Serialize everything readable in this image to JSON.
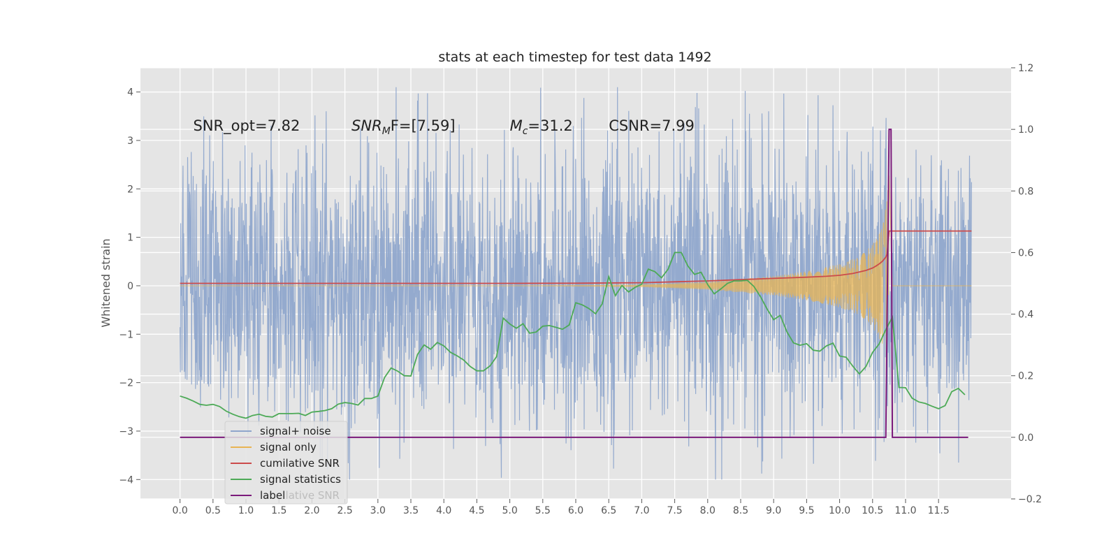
{
  "chart_data": {
    "type": "line",
    "title": "stats at each timestep for test data 1492",
    "xlabel": "",
    "ylabel": "Whitened strain",
    "y2label": "",
    "xlim": [
      -0.6,
      12.6
    ],
    "ylim": [
      -4.4,
      4.5
    ],
    "y2lim": [
      -0.2,
      1.2
    ],
    "x_ticks": [
      "0.0",
      "0.5",
      "1.0",
      "1.5",
      "2.0",
      "2.5",
      "3.0",
      "3.5",
      "4.0",
      "4.5",
      "5.0",
      "5.5",
      "6.0",
      "6.5",
      "7.0",
      "7.5",
      "8.0",
      "8.5",
      "9.0",
      "9.5",
      "10.0",
      "10.5",
      "11.0",
      "11.5"
    ],
    "y_ticks": [
      "4",
      "3",
      "2",
      "1",
      "0",
      "−1",
      "−2",
      "−3",
      "−4"
    ],
    "y2_ticks": [
      "1.2",
      "1.0",
      "0.8",
      "0.6",
      "0.4",
      "0.2",
      "0.0",
      "−0.2"
    ],
    "grid": true,
    "legend_position": "lower-left",
    "annotations": [
      {
        "text": "SNR_opt=7.82",
        "x": 0.2,
        "y": 3.3
      },
      {
        "main": "SNR",
        "sub": "M",
        "rest": "F=[7.59]",
        "x": 2.6,
        "y": 3.3
      },
      {
        "main": "M",
        "sub": "c",
        "rest": "=31.2",
        "x": 5.0,
        "y": 3.3
      },
      {
        "text": "CSNR=7.99",
        "x": 6.5,
        "y": 3.3
      }
    ],
    "series": [
      {
        "name": "signal+ noise",
        "color": "#8fa6cc",
        "axis": "left",
        "kind": "noise",
        "x_range": [
          0,
          12.0
        ],
        "typical_amplitude": 1.9,
        "max": 4.1,
        "min": -4.0
      },
      {
        "name": "signal only",
        "color": "#e8b453",
        "axis": "left",
        "kind": "chirp",
        "x_range": [
          0,
          12.0
        ],
        "merger_time": 10.75,
        "envelope": [
          [
            5.0,
            0.0
          ],
          [
            7.0,
            0.02
          ],
          [
            8.0,
            0.08
          ],
          [
            9.0,
            0.2
          ],
          [
            9.5,
            0.3
          ],
          [
            10.0,
            0.45
          ],
          [
            10.3,
            0.6
          ],
          [
            10.5,
            0.85
          ],
          [
            10.65,
            1.2
          ],
          [
            10.72,
            1.8
          ],
          [
            10.75,
            2.4
          ],
          [
            10.8,
            0.0
          ]
        ]
      },
      {
        "name": "cumilative SNR",
        "color": "#cc4b4b",
        "axis": "right",
        "x": [
          0,
          5,
          6,
          7,
          7.5,
          8,
          8.5,
          9,
          9.5,
          9.8,
          10,
          10.2,
          10.4,
          10.5,
          10.55,
          10.6,
          10.65,
          10.7,
          10.72,
          10.75,
          12.0
        ],
        "y": [
          0.5,
          0.5,
          0.5005,
          0.502,
          0.505,
          0.508,
          0.512,
          0.516,
          0.52,
          0.523,
          0.526,
          0.532,
          0.542,
          0.55,
          0.556,
          0.563,
          0.572,
          0.585,
          0.595,
          0.67,
          0.67
        ]
      },
      {
        "name": "signal statistics",
        "color": "#4daa57",
        "axis": "right",
        "x": [
          0,
          0.1,
          0.2,
          0.3,
          0.4,
          0.5,
          0.6,
          0.7,
          0.8,
          0.9,
          1.0,
          1.1,
          1.2,
          1.3,
          1.4,
          1.5,
          1.6,
          1.7,
          1.8,
          1.9,
          2.0,
          2.1,
          2.2,
          2.3,
          2.4,
          2.5,
          2.6,
          2.7,
          2.8,
          2.9,
          3.0,
          3.1,
          3.2,
          3.3,
          3.4,
          3.5,
          3.6,
          3.7,
          3.8,
          3.9,
          4.0,
          4.1,
          4.2,
          4.3,
          4.4,
          4.5,
          4.6,
          4.7,
          4.8,
          4.9,
          5.0,
          5.1,
          5.2,
          5.3,
          5.4,
          5.5,
          5.6,
          5.7,
          5.8,
          5.9,
          6.0,
          6.1,
          6.2,
          6.3,
          6.4,
          6.5,
          6.6,
          6.7,
          6.8,
          6.9,
          7.0,
          7.1,
          7.2,
          7.3,
          7.4,
          7.5,
          7.6,
          7.7,
          7.8,
          7.9,
          8.0,
          8.1,
          8.2,
          8.3,
          8.4,
          8.5,
          8.6,
          8.7,
          8.8,
          8.9,
          9.0,
          9.1,
          9.2,
          9.3,
          9.4,
          9.5,
          9.6,
          9.7,
          9.8,
          9.9,
          10.0,
          10.1,
          10.2,
          10.3,
          10.4,
          10.5,
          10.6,
          10.7,
          10.8,
          10.9,
          11.0,
          11.1,
          11.2,
          11.3,
          11.4,
          11.5,
          11.6,
          11.7,
          11.8,
          11.9
        ],
        "y": [
          0.134,
          0.127,
          0.118,
          0.107,
          0.104,
          0.107,
          0.1,
          0.085,
          0.075,
          0.067,
          0.062,
          0.071,
          0.075,
          0.068,
          0.066,
          0.077,
          0.077,
          0.077,
          0.078,
          0.071,
          0.082,
          0.084,
          0.087,
          0.093,
          0.108,
          0.113,
          0.11,
          0.105,
          0.126,
          0.126,
          0.134,
          0.194,
          0.225,
          0.215,
          0.2,
          0.199,
          0.269,
          0.3,
          0.286,
          0.308,
          0.297,
          0.276,
          0.265,
          0.251,
          0.23,
          0.216,
          0.216,
          0.232,
          0.262,
          0.387,
          0.368,
          0.354,
          0.369,
          0.338,
          0.342,
          0.361,
          0.363,
          0.357,
          0.351,
          0.365,
          0.437,
          0.43,
          0.418,
          0.401,
          0.433,
          0.522,
          0.46,
          0.493,
          0.472,
          0.487,
          0.497,
          0.546,
          0.538,
          0.518,
          0.546,
          0.6,
          0.6,
          0.556,
          0.529,
          0.536,
          0.496,
          0.466,
          0.482,
          0.5,
          0.508,
          0.508,
          0.51,
          0.49,
          0.457,
          0.417,
          0.382,
          0.396,
          0.343,
          0.307,
          0.299,
          0.304,
          0.283,
          0.28,
          0.297,
          0.306,
          0.264,
          0.26,
          0.231,
          0.206,
          0.23,
          0.276,
          0.303,
          0.35,
          0.39,
          0.162,
          0.161,
          0.127,
          0.115,
          0.11,
          0.101,
          0.093,
          0.103,
          0.148,
          0.159,
          0.138
        ]
      },
      {
        "name": "label",
        "color": "#7b1a7b",
        "axis": "right",
        "x": [
          0,
          10.68,
          10.7,
          10.75,
          10.78,
          10.8,
          11.95
        ],
        "y": [
          0.0,
          0.0,
          0.0,
          1.0,
          1.0,
          0.0,
          0.0
        ]
      }
    ]
  },
  "legend": {
    "items": [
      "signal+ noise",
      "signal only",
      "cumilative SNR",
      "signal statistics",
      "label"
    ],
    "ghost_text": "cumilative SNR"
  }
}
